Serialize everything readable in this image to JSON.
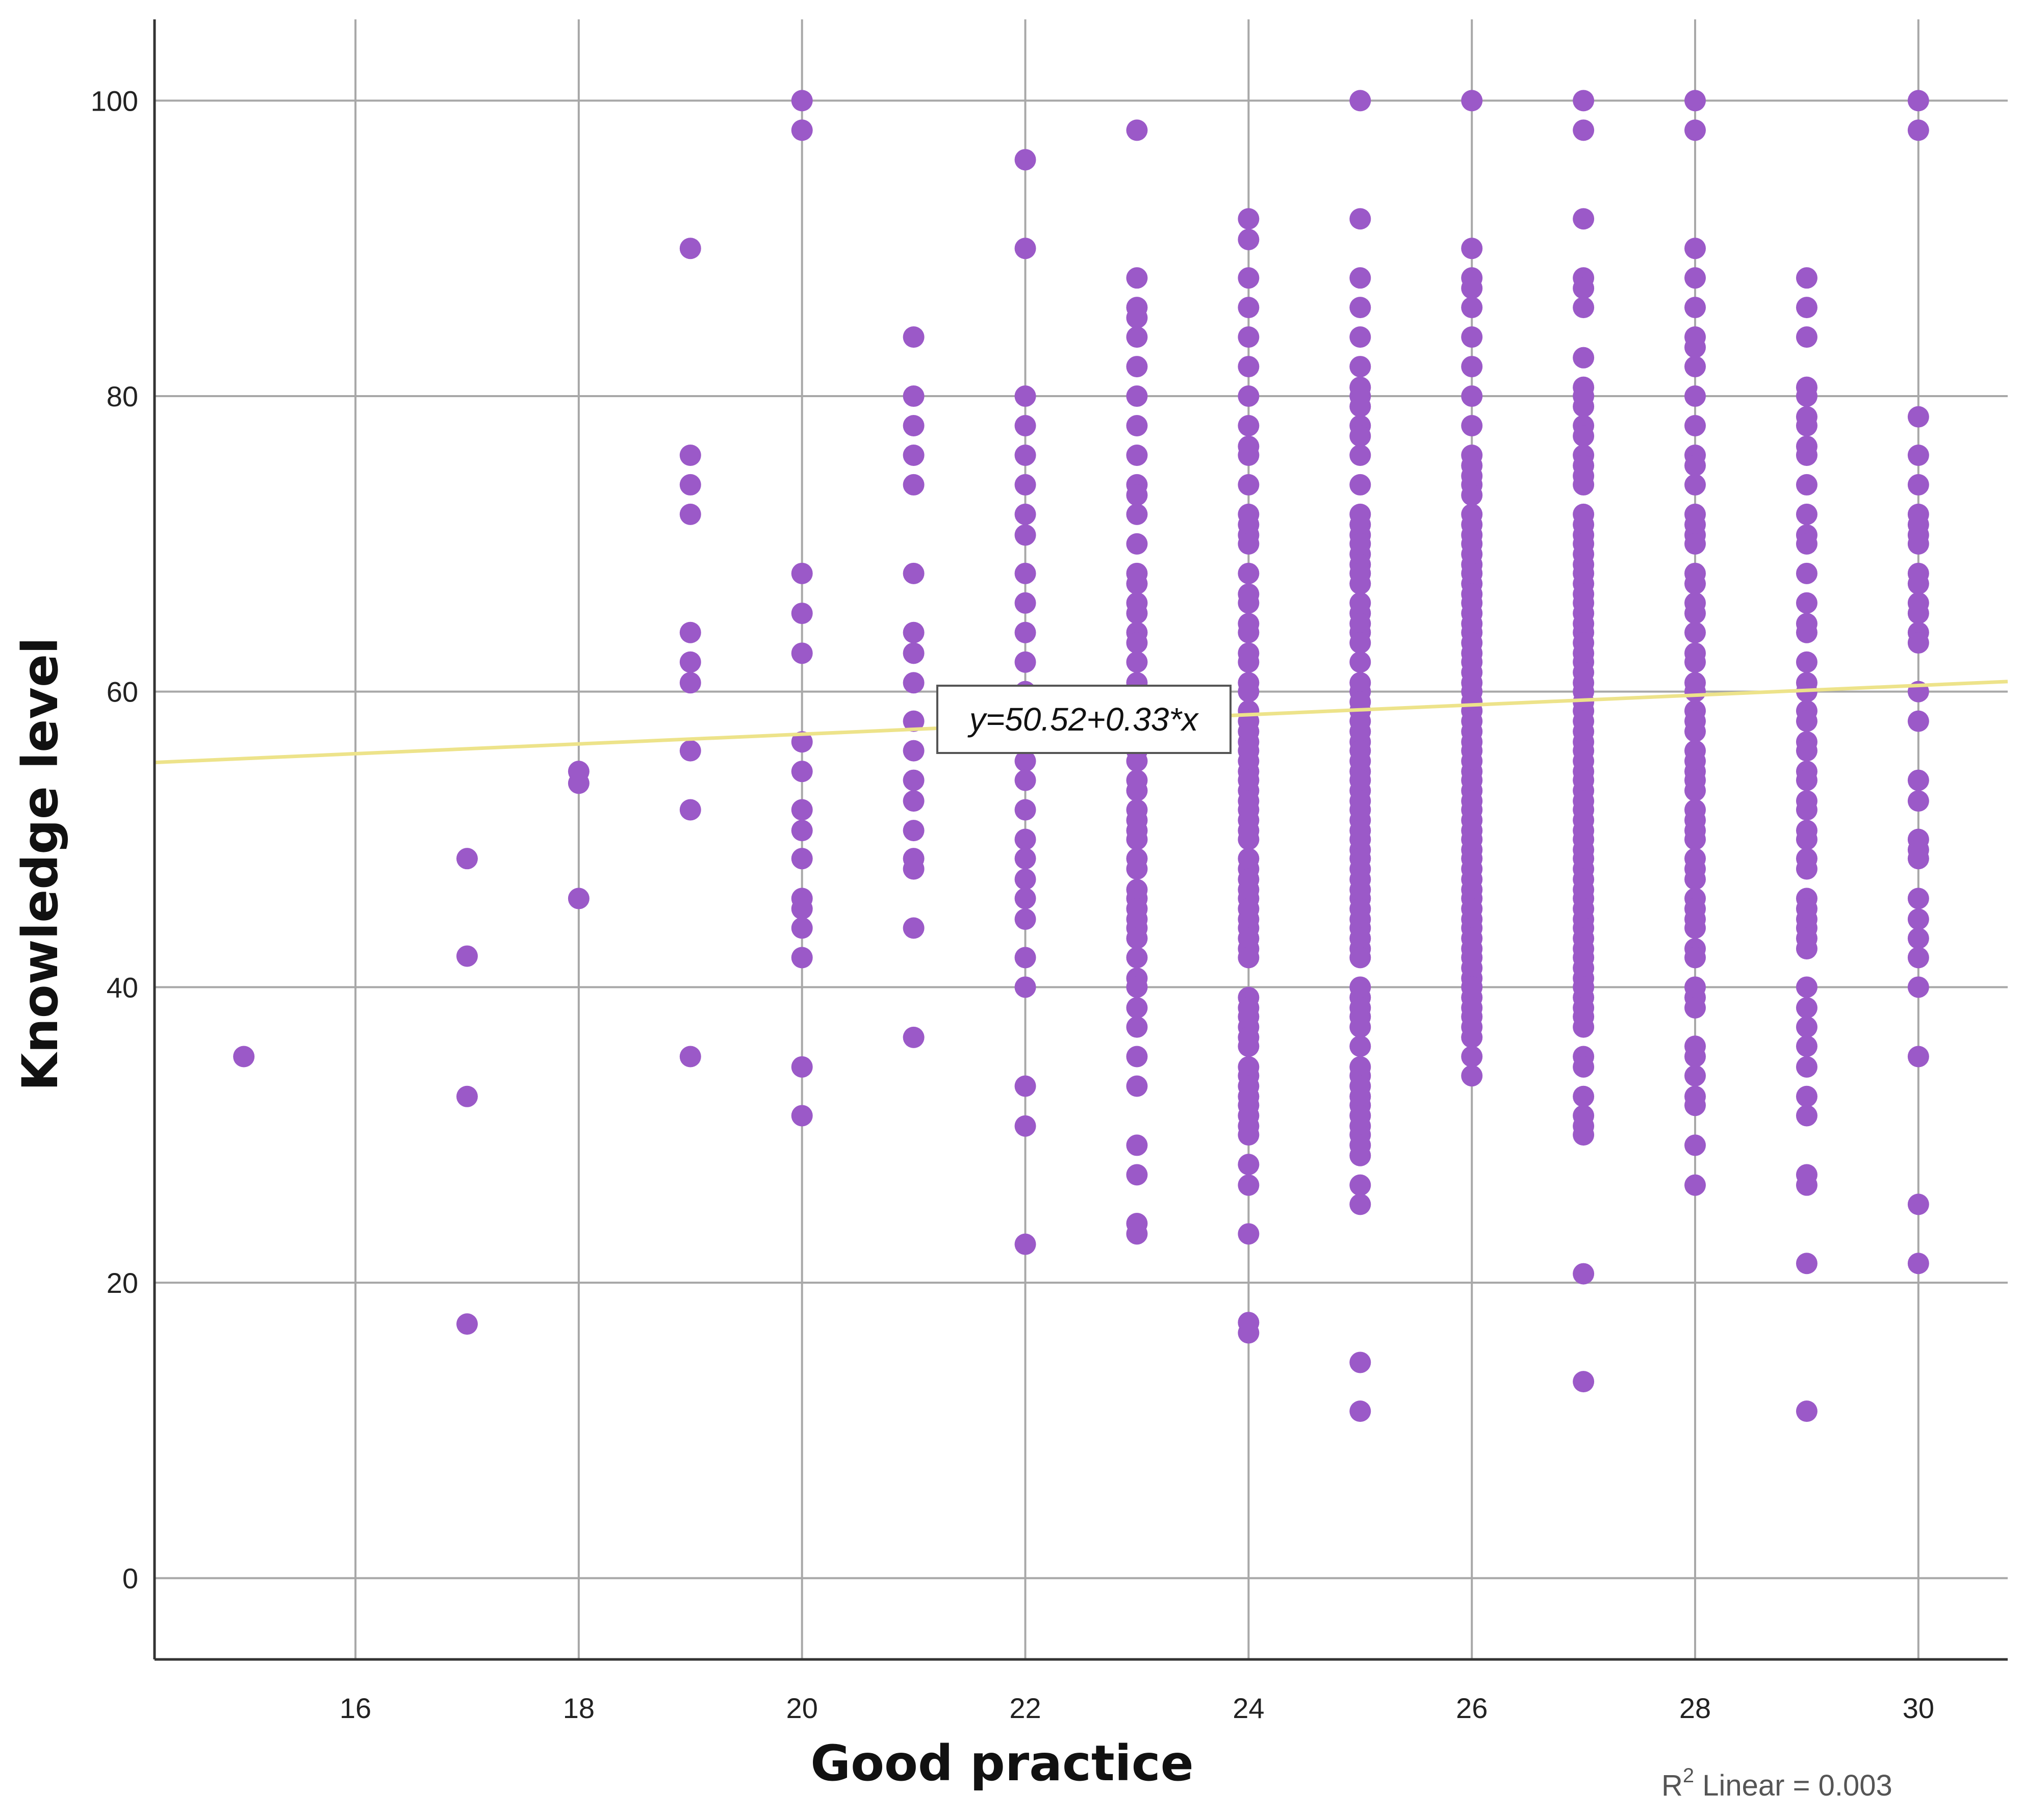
{
  "chart_data": {
    "type": "scatter",
    "title": "",
    "xlabel": "Good practice",
    "ylabel": "Knowledge level",
    "xlim": [
      14.2,
      30.8
    ],
    "ylim": [
      -5.5,
      105.5
    ],
    "x_ticks": [
      "16",
      "18",
      "20",
      "22",
      "24",
      "26",
      "28",
      "30"
    ],
    "y_ticks": [
      "0",
      "20",
      "40",
      "60",
      "80",
      "100"
    ],
    "grid": true,
    "colors": {
      "points": "#9b59c8",
      "fit_line": "#ede38a",
      "grid": "#a8a8a8",
      "axis": "#333333"
    },
    "fit_line": {
      "intercept": 50.52,
      "slope": 0.33,
      "label": "y=50.52+0.33*x"
    },
    "r2_label": {
      "prefix": "R",
      "sup": "2",
      "suffix": " Linear = 0.003"
    },
    "series": [
      {
        "columns": [
          {
            "x": 15,
            "y": [
              35.3
            ]
          },
          {
            "x": 17,
            "y": [
              48.7,
              42.1,
              32.6,
              17.2
            ]
          },
          {
            "x": 18,
            "y": [
              54.6,
              53.8,
              46.0
            ]
          },
          {
            "x": 19,
            "y": [
              90.0,
              76.0,
              74.0,
              72.0,
              64.0,
              62.0,
              60.6,
              56.0,
              52.0,
              35.3
            ]
          },
          {
            "x": 20,
            "y": [
              100.0,
              98.0,
              68.0,
              65.3,
              62.6,
              56.6,
              54.6,
              52.0,
              50.6,
              48.7,
              46.0,
              45.3,
              44.0,
              42.0,
              34.6,
              31.3
            ]
          },
          {
            "x": 21,
            "y": [
              84.0,
              80.0,
              78.0,
              76.0,
              74.0,
              68.0,
              64.0,
              62.6,
              60.6,
              58.0,
              56.0,
              54.0,
              52.6,
              50.6,
              48.7,
              48.0,
              44.0,
              36.6
            ]
          },
          {
            "x": 22,
            "y": [
              96.0,
              90.0,
              80.0,
              78.0,
              76.0,
              74.0,
              72.0,
              70.6,
              68.0,
              66.0,
              64.0,
              62.0,
              60.0,
              58.0,
              56.6,
              55.3,
              54.0,
              52.0,
              50.0,
              48.7,
              47.3,
              46.0,
              44.6,
              42.0,
              40.0,
              33.3,
              30.6,
              22.6
            ]
          },
          {
            "x": 23,
            "y": [
              98.0,
              88.0,
              86.0,
              85.3,
              84.0,
              82.0,
              80.0,
              78.0,
              76.0,
              74.0,
              73.3,
              72.0,
              70.0,
              68.0,
              67.3,
              66.0,
              65.3,
              64.0,
              63.3,
              62.0,
              60.6,
              60.0,
              58.7,
              58.0,
              57.3,
              56.0,
              55.3,
              54.0,
              53.3,
              52.0,
              51.3,
              50.6,
              50.0,
              48.7,
              48.0,
              46.6,
              46.0,
              45.3,
              44.6,
              44.0,
              43.3,
              42.0,
              40.6,
              40.0,
              38.6,
              37.3,
              35.3,
              33.3,
              29.3,
              27.3,
              24.0,
              23.3
            ]
          },
          {
            "x": 24,
            "y": [
              92.0,
              90.6,
              88.0,
              86.0,
              84.0,
              82.0,
              80.0,
              78.0,
              76.6,
              76.0,
              74.0,
              72.0,
              71.3,
              70.6,
              70.0,
              68.0,
              66.6,
              66.0,
              64.6,
              64.0,
              62.6,
              62.0,
              60.6,
              60.0,
              58.7,
              58.0,
              57.3,
              56.6,
              56.0,
              55.3,
              54.6,
              54.0,
              53.3,
              52.6,
              52.0,
              51.3,
              50.6,
              50.0,
              48.7,
              48.0,
              47.3,
              46.6,
              46.0,
              45.3,
              44.6,
              44.0,
              43.3,
              42.6,
              42.0,
              39.3,
              38.6,
              38.0,
              37.3,
              36.6,
              36.0,
              34.6,
              34.0,
              33.3,
              32.6,
              32.0,
              31.3,
              30.6,
              30.0,
              28.0,
              26.6,
              23.3,
              17.3,
              16.6
            ]
          },
          {
            "x": 25,
            "y": [
              100.0,
              92.0,
              88.0,
              86.0,
              84.0,
              82.0,
              80.6,
              80.0,
              79.3,
              78.0,
              77.3,
              76.0,
              74.0,
              72.0,
              71.3,
              70.6,
              70.0,
              69.3,
              68.6,
              68.0,
              67.3,
              66.0,
              65.3,
              64.6,
              64.0,
              63.3,
              62.0,
              60.6,
              60.0,
              59.3,
              58.7,
              58.0,
              57.3,
              56.6,
              56.0,
              55.3,
              54.6,
              54.0,
              53.3,
              52.6,
              52.0,
              51.3,
              50.6,
              50.0,
              49.3,
              48.7,
              48.0,
              47.3,
              46.6,
              46.0,
              45.3,
              44.6,
              44.0,
              43.3,
              42.6,
              42.0,
              40.0,
              39.3,
              38.6,
              38.0,
              37.3,
              36.0,
              34.6,
              34.0,
              33.3,
              32.6,
              32.0,
              31.3,
              30.6,
              30.0,
              29.3,
              28.6,
              26.6,
              25.3,
              14.6,
              11.3
            ]
          },
          {
            "x": 26,
            "y": [
              100.0,
              90.0,
              88.0,
              87.3,
              86.0,
              84.0,
              82.0,
              80.0,
              78.0,
              76.0,
              75.3,
              74.6,
              74.0,
              73.3,
              72.0,
              71.3,
              70.6,
              70.0,
              69.3,
              68.6,
              68.0,
              67.3,
              66.6,
              66.0,
              65.3,
              64.6,
              64.0,
              63.3,
              62.6,
              62.0,
              61.3,
              60.6,
              60.0,
              59.3,
              58.7,
              58.0,
              57.3,
              56.6,
              56.0,
              55.3,
              54.6,
              54.0,
              53.3,
              52.6,
              52.0,
              51.3,
              50.6,
              50.0,
              49.3,
              48.7,
              48.0,
              47.3,
              46.6,
              46.0,
              45.3,
              44.6,
              44.0,
              43.3,
              42.6,
              42.0,
              41.3,
              40.6,
              40.0,
              39.3,
              38.6,
              38.0,
              37.3,
              36.6,
              35.3,
              34.0
            ]
          },
          {
            "x": 27,
            "y": [
              100.0,
              98.0,
              92.0,
              88.0,
              87.3,
              86.0,
              82.6,
              80.6,
              80.0,
              79.3,
              78.0,
              77.3,
              76.0,
              75.3,
              74.6,
              74.0,
              72.0,
              71.3,
              70.6,
              70.0,
              69.3,
              68.6,
              68.0,
              67.3,
              66.6,
              66.0,
              65.3,
              64.6,
              64.0,
              63.3,
              62.6,
              62.0,
              61.3,
              60.6,
              60.0,
              59.3,
              58.7,
              58.0,
              57.3,
              56.6,
              56.0,
              55.3,
              54.6,
              54.0,
              53.3,
              52.6,
              52.0,
              51.3,
              50.6,
              50.0,
              49.3,
              48.7,
              48.0,
              47.3,
              46.6,
              46.0,
              45.3,
              44.6,
              44.0,
              43.3,
              42.6,
              42.0,
              41.3,
              40.6,
              40.0,
              39.3,
              38.6,
              38.0,
              37.3,
              35.3,
              34.6,
              32.6,
              31.3,
              30.6,
              30.0,
              20.6,
              13.3
            ]
          },
          {
            "x": 28,
            "y": [
              100.0,
              98.0,
              90.0,
              88.0,
              86.0,
              84.0,
              83.3,
              82.0,
              80.0,
              78.0,
              76.0,
              75.3,
              74.0,
              72.0,
              71.3,
              70.6,
              70.0,
              68.0,
              67.3,
              66.0,
              65.3,
              64.0,
              62.6,
              62.0,
              60.6,
              60.0,
              58.7,
              58.0,
              57.3,
              56.0,
              55.3,
              54.6,
              54.0,
              53.3,
              52.0,
              51.3,
              50.6,
              50.0,
              48.7,
              48.0,
              47.3,
              46.0,
              45.3,
              44.6,
              44.0,
              42.6,
              42.0,
              40.0,
              39.3,
              38.6,
              36.0,
              35.3,
              34.0,
              32.6,
              32.0,
              29.3,
              26.6
            ]
          },
          {
            "x": 29,
            "y": [
              88.0,
              86.0,
              84.0,
              80.6,
              80.0,
              78.6,
              78.0,
              76.6,
              76.0,
              74.0,
              72.0,
              70.6,
              70.0,
              68.0,
              66.0,
              64.6,
              64.0,
              62.0,
              60.6,
              60.0,
              58.7,
              58.0,
              56.6,
              56.0,
              54.6,
              54.0,
              52.6,
              52.0,
              50.6,
              50.0,
              48.7,
              48.0,
              46.0,
              45.3,
              44.6,
              44.0,
              43.3,
              42.6,
              40.0,
              38.6,
              37.3,
              36.0,
              34.6,
              32.6,
              31.3,
              27.3,
              26.6,
              21.3,
              11.3
            ]
          },
          {
            "x": 30,
            "y": [
              100.0,
              98.0,
              78.6,
              76.0,
              74.0,
              72.0,
              71.3,
              70.6,
              70.0,
              68.0,
              67.3,
              66.0,
              65.3,
              64.0,
              63.3,
              60.0,
              58.0,
              54.0,
              52.6,
              50.0,
              49.3,
              48.7,
              46.0,
              44.6,
              43.3,
              42.0,
              40.0,
              35.3,
              25.3,
              21.3
            ]
          }
        ]
      }
    ]
  }
}
